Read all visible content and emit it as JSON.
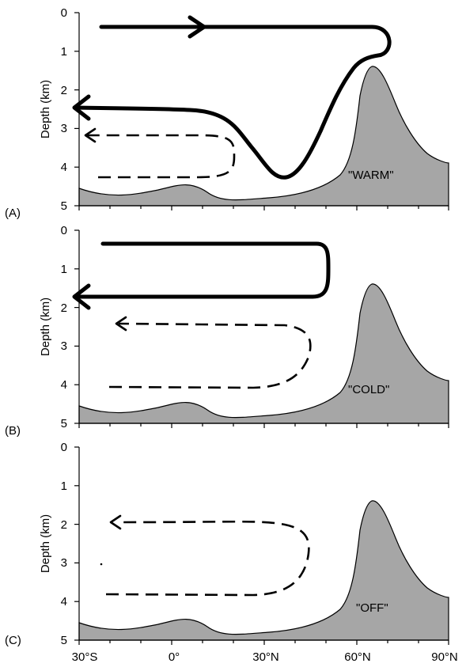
{
  "y_axis": {
    "title": "Depth (km)",
    "ticks": [
      "0",
      "1",
      "2",
      "3",
      "4",
      "5"
    ]
  },
  "x_axis": {
    "ticks": [
      "30°S",
      "0°",
      "30°N",
      "60°N",
      "90°N"
    ]
  },
  "panels": [
    {
      "id": "A",
      "label": "(A)",
      "mode": "\"WARM\""
    },
    {
      "id": "B",
      "label": "(B)",
      "mode": "\"COLD\""
    },
    {
      "id": "C",
      "label": "(C)",
      "mode": "\"OFF\""
    }
  ]
}
